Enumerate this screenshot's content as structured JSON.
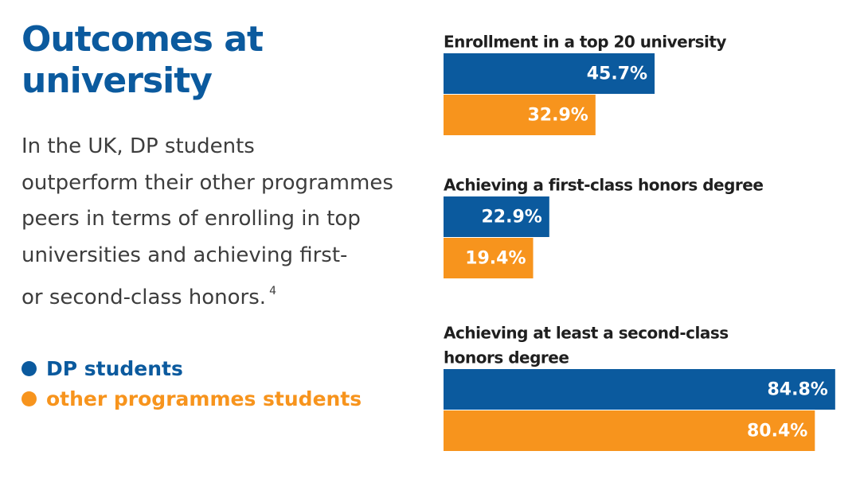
{
  "heading": {
    "line1": "Outcomes at",
    "line2": "university"
  },
  "paragraph": {
    "lines": [
      "In the UK, DP students",
      "outperform their other programmes",
      "peers  in terms of enrolling in top",
      "universities and achieving first-",
      "or second-class honors."
    ],
    "footnote": "4"
  },
  "colors": {
    "title": "#0b5a9e",
    "dp": "#0b5a9e",
    "other": "#f7941d",
    "text": "#3d3d3d"
  },
  "legend": [
    {
      "label": "DP students",
      "color": "#0b5a9e"
    },
    {
      "label": "other programmes students",
      "color": "#f7941d"
    }
  ],
  "chart_data": {
    "type": "bar",
    "orientation": "horizontal",
    "series": [
      {
        "name": "DP students",
        "color": "#0b5a9e"
      },
      {
        "name": "other programmes students",
        "color": "#f7941d"
      }
    ],
    "groups": [
      {
        "title_lines": [
          "Enrollment in a top 20 university"
        ],
        "values": [
          45.7,
          32.9
        ],
        "labels": [
          "45.7%",
          "32.9%"
        ]
      },
      {
        "title_lines": [
          "Achieving  a first-class honors degree"
        ],
        "values": [
          22.9,
          19.4
        ],
        "labels": [
          "22.9%",
          "19.4%"
        ]
      },
      {
        "title_lines": [
          "Achieving  at least  a second-class",
          "honors degree"
        ],
        "values": [
          84.8,
          80.4
        ],
        "labels": [
          "84.8%",
          "80.4%"
        ]
      }
    ],
    "unit": "%",
    "axis": "none",
    "grid": false
  }
}
